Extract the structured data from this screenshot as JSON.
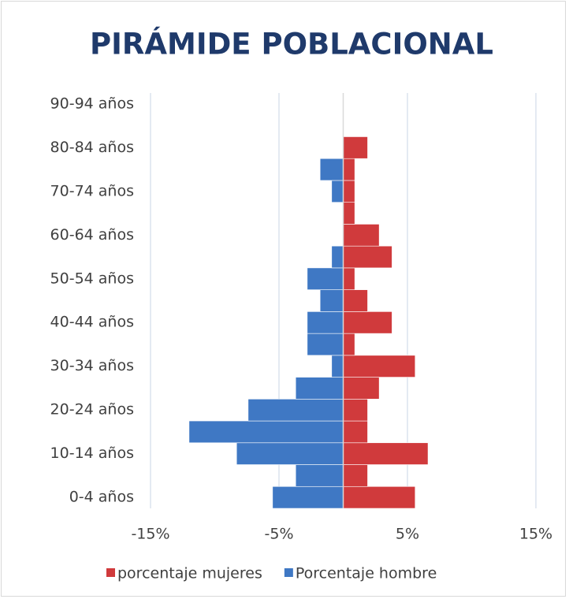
{
  "chart_data": {
    "type": "bar",
    "orientation": "horizontal",
    "stacked": true,
    "title": "PIRÁMIDE POBLACIONAL",
    "categories": [
      "0-4 años",
      null,
      "10-14 años",
      null,
      "20-24 años",
      null,
      "30-34 años",
      null,
      "40-44 años",
      null,
      "50-54 años",
      null,
      "60-64 años",
      null,
      "70-74 años",
      null,
      "80-84 años",
      null,
      "90-94 años"
    ],
    "series": [
      {
        "name": "porcentaje mujeres",
        "color": "#d03a3c",
        "values": [
          5.6,
          1.9,
          6.6,
          1.9,
          1.9,
          2.8,
          5.6,
          0.9,
          3.8,
          1.9,
          0.9,
          3.8,
          2.8,
          0.9,
          0.9,
          0.9,
          1.9,
          0,
          0
        ]
      },
      {
        "name": "Porcentaje hombre",
        "color": "#3f78c4",
        "values": [
          -5.5,
          -3.7,
          -8.3,
          -12.0,
          -7.4,
          -3.7,
          -0.9,
          -2.8,
          -2.8,
          -1.8,
          -2.8,
          -0.9,
          0,
          0,
          -0.9,
          -1.8,
          0,
          0,
          0
        ]
      }
    ],
    "xlim": [
      -15,
      15
    ],
    "xticks": [
      {
        "value": -15,
        "label": "-15%"
      },
      {
        "value": -5,
        "label": "-5%"
      },
      {
        "value": 5,
        "label": "5%"
      },
      {
        "value": 15,
        "label": "15%"
      }
    ],
    "grid": true,
    "legend": "bottom"
  }
}
